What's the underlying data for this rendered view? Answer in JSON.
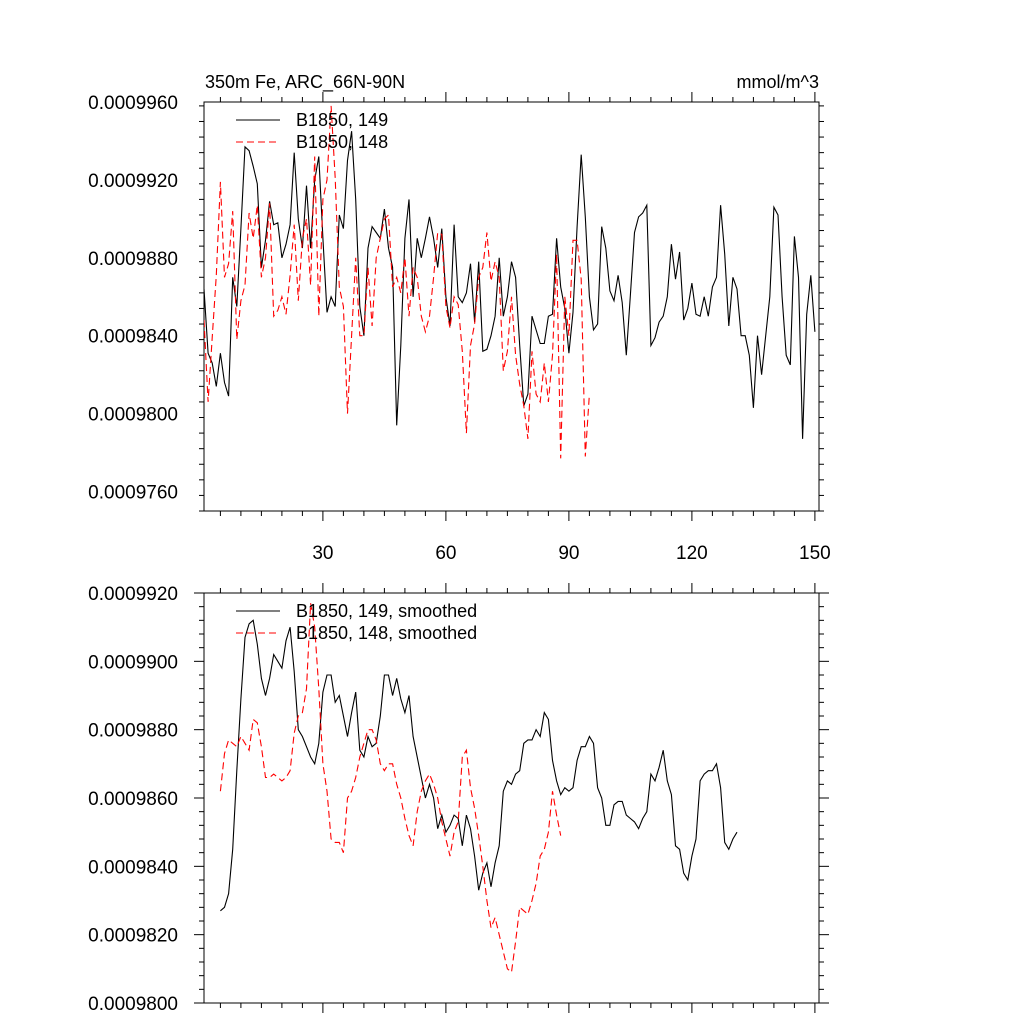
{
  "chart_data": [
    {
      "type": "line",
      "title_left": "350m Fe, ARC_66N-90N",
      "title_right": "mmol/m^3",
      "ylim": [
        0.000975,
        0.000996
      ],
      "xlim": [
        1,
        151
      ],
      "yticks": [
        0.000976,
        0.00098,
        0.000984,
        0.000988,
        0.000992,
        0.000996
      ],
      "ytick_labels": [
        "0.0009760",
        "0.0009800",
        "0.0009840",
        "0.0009880",
        "0.0009920",
        "0.0009960"
      ],
      "xticks": [
        30,
        60,
        90,
        120,
        150
      ],
      "xtick_labels": [
        "30",
        "60",
        "90",
        "120",
        "150"
      ],
      "legend_position": "top-left",
      "series": [
        {
          "name": "B1850, 149",
          "color": "#000000",
          "dash": "solid",
          "x_start": 1,
          "values": [
            0.0009864,
            0.0009831,
            0.0009826,
            0.0009814,
            0.0009831,
            0.0009816,
            0.0009809,
            0.000987,
            0.0009855,
            0.0009895,
            0.0009937,
            0.0009935,
            0.0009927,
            0.0009918,
            0.0009875,
            0.0009889,
            0.0009909,
            0.0009897,
            0.0009898,
            0.000988,
            0.0009887,
            0.0009897,
            0.0009934,
            0.00099,
            0.0009885,
            0.0009917,
            0.0009885,
            0.000992,
            0.0009932,
            0.000989,
            0.0009852,
            0.000986,
            0.0009855,
            0.0009902,
            0.0009895,
            0.000993,
            0.0009945,
            0.000991,
            0.0009855,
            0.000984,
            0.0009885,
            0.0009896,
            0.0009893,
            0.000989,
            0.0009905,
            0.0009885,
            0.0009875,
            0.0009794,
            0.0009835,
            0.000989,
            0.000991,
            0.000986,
            0.000989,
            0.000988,
            0.000989,
            0.0009901,
            0.000989,
            0.0009875,
            0.0009895,
            0.000986,
            0.0009845,
            0.0009897,
            0.000986,
            0.0009857,
            0.0009862,
            0.0009877,
            0.0009847,
            0.0009878,
            0.0009832,
            0.0009833,
            0.000984,
            0.000985,
            0.000988,
            0.000985,
            0.000986,
            0.0009878,
            0.000987,
            0.0009835,
            0.0009804,
            0.000981,
            0.000985,
            0.0009843,
            0.0009836,
            0.0009836,
            0.000985,
            0.0009851,
            0.000989,
            0.0009865,
            0.0009854,
            0.0009831,
            0.0009852,
            0.0009896,
            0.0009933,
            0.0009901,
            0.000986,
            0.0009843,
            0.0009846,
            0.0009896,
            0.0009885,
            0.0009863,
            0.0009858,
            0.0009871,
            0.0009857,
            0.000983,
            0.0009861,
            0.0009893,
            0.0009901,
            0.0009903,
            0.0009907,
            0.0009835,
            0.0009839,
            0.0009847,
            0.000985,
            0.000986,
            0.0009887,
            0.0009869,
            0.0009883,
            0.0009848,
            0.0009854,
            0.0009867,
            0.0009851,
            0.000985,
            0.000986,
            0.000985,
            0.0009865,
            0.000987,
            0.0009907,
            0.0009882,
            0.0009845,
            0.000987,
            0.0009864,
            0.000984,
            0.000984,
            0.000983,
            0.0009803,
            0.000984,
            0.000982,
            0.000984,
            0.000986,
            0.0009906,
            0.0009902,
            0.000986,
            0.000983,
            0.0009825,
            0.0009891,
            0.000987,
            0.0009787,
            0.0009851,
            0.0009871,
            0.0009842
          ]
        },
        {
          "name": "B1850, 148",
          "color": "#ff0000",
          "dash": "dashed",
          "x_start": 1,
          "values": [
            0.0009848,
            0.0009806,
            0.0009839,
            0.0009871,
            0.0009919,
            0.000987,
            0.0009877,
            0.0009904,
            0.0009838,
            0.0009858,
            0.0009866,
            0.0009903,
            0.000989,
            0.0009907,
            0.000987,
            0.000988,
            0.0009908,
            0.000985,
            0.0009853,
            0.000986,
            0.0009851,
            0.0009871,
            0.0009897,
            0.0009858,
            0.000989,
            0.00099,
            0.0009866,
            0.0009932,
            0.000985,
            0.000991,
            0.000992,
            0.0009958,
            0.0009921,
            0.0009865,
            0.0009855,
            0.00098,
            0.000984,
            0.000988,
            0.000984,
            0.000984,
            0.0009875,
            0.0009845,
            0.000988,
            0.000989,
            0.00099,
            0.0009902,
            0.0009865,
            0.000987,
            0.0009862,
            0.000988,
            0.000985,
            0.0009875,
            0.000987,
            0.000985,
            0.0009842,
            0.000985,
            0.000987,
            0.0009893,
            0.0009892,
            0.0009855,
            0.0009844,
            0.000986,
            0.0009856,
            0.0009832,
            0.000979,
            0.0009835,
            0.0009846,
            0.000987,
            0.0009875,
            0.0009893,
            0.0009868,
            0.0009878,
            0.000987,
            0.0009822,
            0.0009832,
            0.000986,
            0.000983,
            0.0009815,
            0.0009804,
            0.0009787,
            0.0009832,
            0.000981,
            0.0009806,
            0.0009826,
            0.0009806,
            0.000983,
            0.0009882,
            0.0009777,
            0.000986,
            0.000984,
            0.0009889,
            0.0009889,
            0.0009869,
            0.0009778,
            0.000981
          ]
        }
      ]
    },
    {
      "type": "line",
      "ylim": [
        0.00098,
        0.000992
      ],
      "xlim": [
        1,
        151
      ],
      "yticks": [
        0.00098,
        0.000982,
        0.000984,
        0.000986,
        0.000988,
        0.00099,
        0.000992
      ],
      "ytick_labels": [
        "0.0009800",
        "0.0009820",
        "0.0009840",
        "0.0009860",
        "0.0009880",
        "0.0009900",
        "0.0009920"
      ],
      "xticks": [
        30,
        60,
        90,
        120,
        150
      ],
      "legend_position": "top-left",
      "series": [
        {
          "name": "B1850, 149, smoothed",
          "color": "#000000",
          "dash": "solid",
          "x_start": 5,
          "values": [
            0.0009827,
            0.0009828,
            0.0009832,
            0.0009845,
            0.0009868,
            0.0009889,
            0.0009907,
            0.0009911,
            0.0009912,
            0.0009905,
            0.0009895,
            0.000989,
            0.0009895,
            0.0009902,
            0.00099,
            0.0009898,
            0.0009906,
            0.000991,
            0.0009897,
            0.000988,
            0.0009878,
            0.0009875,
            0.0009872,
            0.000987,
            0.0009876,
            0.0009891,
            0.0009896,
            0.0009896,
            0.0009888,
            0.000989,
            0.0009884,
            0.0009878,
            0.0009885,
            0.0009891,
            0.0009874,
            0.0009872,
            0.0009878,
            0.0009875,
            0.0009876,
            0.0009884,
            0.0009896,
            0.0009896,
            0.000989,
            0.0009895,
            0.0009889,
            0.0009885,
            0.000989,
            0.0009878,
            0.0009872,
            0.0009866,
            0.000986,
            0.0009864,
            0.000986,
            0.0009851,
            0.0009855,
            0.000985,
            0.0009852,
            0.0009855,
            0.0009854,
            0.0009846,
            0.0009855,
            0.0009851,
            0.0009843,
            0.0009833,
            0.0009838,
            0.0009841,
            0.0009834,
            0.0009841,
            0.0009846,
            0.0009862,
            0.0009865,
            0.0009864,
            0.0009867,
            0.0009868,
            0.0009876,
            0.0009877,
            0.0009877,
            0.000988,
            0.0009878,
            0.0009885,
            0.0009883,
            0.0009871,
            0.0009865,
            0.0009861,
            0.0009863,
            0.0009862,
            0.0009863,
            0.0009871,
            0.0009875,
            0.0009875,
            0.0009878,
            0.0009876,
            0.0009863,
            0.000986,
            0.0009852,
            0.0009852,
            0.0009858,
            0.0009859,
            0.0009859,
            0.0009855,
            0.0009854,
            0.0009853,
            0.0009851,
            0.0009854,
            0.0009856,
            0.0009867,
            0.0009865,
            0.0009869,
            0.0009874,
            0.0009865,
            0.0009861,
            0.0009846,
            0.0009845,
            0.0009838,
            0.0009836,
            0.0009843,
            0.0009848,
            0.0009865,
            0.0009867,
            0.0009868,
            0.0009868,
            0.000987,
            0.0009863,
            0.0009847,
            0.0009845,
            0.0009848,
            0.000985
          ]
        },
        {
          "name": "B1850, 148, smoothed",
          "color": "#ff0000",
          "dash": "dashed",
          "x_start": 5,
          "values": [
            0.0009862,
            0.0009873,
            0.0009877,
            0.0009876,
            0.0009875,
            0.0009878,
            0.0009876,
            0.0009874,
            0.0009883,
            0.0009882,
            0.0009875,
            0.0009866,
            0.0009866,
            0.0009867,
            0.0009866,
            0.0009865,
            0.0009866,
            0.0009868,
            0.0009879,
            0.0009884,
            0.0009885,
            0.0009892,
            0.0009917,
            0.000991,
            0.0009892,
            0.000987,
            0.0009862,
            0.0009848,
            0.0009847,
            0.0009847,
            0.0009844,
            0.000986,
            0.0009862,
            0.0009866,
            0.0009872,
            0.0009876,
            0.000988,
            0.000988,
            0.0009877,
            0.000987,
            0.0009868,
            0.000987,
            0.000987,
            0.0009864,
            0.000986,
            0.0009854,
            0.0009849,
            0.0009846,
            0.0009856,
            0.0009862,
            0.0009865,
            0.0009867,
            0.0009864,
            0.000986,
            0.0009853,
            0.0009848,
            0.0009843,
            0.000985,
            0.0009853,
            0.0009872,
            0.0009874,
            0.0009863,
            0.0009857,
            0.0009849,
            0.000984,
            0.000983,
            0.0009822,
            0.0009825,
            0.000982,
            0.0009815,
            0.000981,
            0.0009809,
            0.0009818,
            0.0009828,
            0.0009827,
            0.0009826,
            0.000983,
            0.0009835,
            0.0009843,
            0.0009845,
            0.000985,
            0.0009862,
            0.0009855,
            0.0009849
          ]
        }
      ]
    }
  ]
}
